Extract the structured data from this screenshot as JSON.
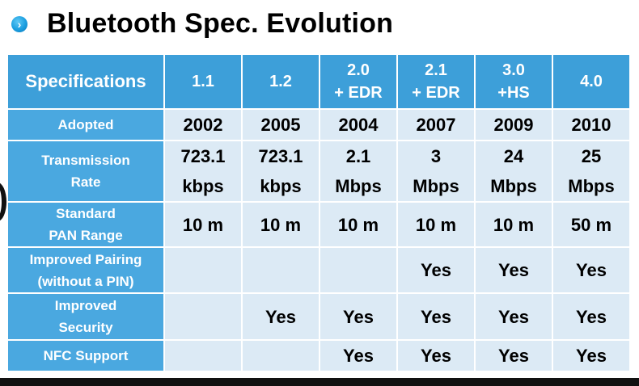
{
  "title": "Bluetooth Spec. Evolution",
  "bullet_icon": "chevron-right-icon",
  "colors": {
    "header_bg": "#3d9fd9",
    "row_label_bg": "#4aa8e0",
    "cell_bg": "#dceaf5",
    "bullet": "#1a9ee0"
  },
  "table": {
    "corner_label": "Specifications",
    "columns": [
      {
        "line1": "1.1",
        "line2": ""
      },
      {
        "line1": "1.2",
        "line2": ""
      },
      {
        "line1": "2.0",
        "line2": "+ EDR"
      },
      {
        "line1": "2.1",
        "line2": "+ EDR"
      },
      {
        "line1": "3.0",
        "line2": "+HS"
      },
      {
        "line1": "4.0",
        "line2": ""
      }
    ],
    "rows": [
      {
        "label1": "Adopted",
        "label2": "",
        "cells": [
          {
            "l1": "2002",
            "l2": ""
          },
          {
            "l1": "2005",
            "l2": ""
          },
          {
            "l1": "2004",
            "l2": ""
          },
          {
            "l1": "2007",
            "l2": ""
          },
          {
            "l1": "2009",
            "l2": ""
          },
          {
            "l1": "2010",
            "l2": ""
          }
        ]
      },
      {
        "label1": "Transmission",
        "label2": "Rate",
        "cells": [
          {
            "l1": "723.1",
            "l2": "kbps"
          },
          {
            "l1": "723.1",
            "l2": "kbps"
          },
          {
            "l1": "2.1",
            "l2": "Mbps"
          },
          {
            "l1": "3",
            "l2": "Mbps"
          },
          {
            "l1": "24",
            "l2": "Mbps"
          },
          {
            "l1": "25",
            "l2": "Mbps"
          }
        ]
      },
      {
        "label1": "Standard",
        "label2": "PAN Range",
        "cells": [
          {
            "l1": "10 m",
            "l2": ""
          },
          {
            "l1": "10 m",
            "l2": ""
          },
          {
            "l1": "10 m",
            "l2": ""
          },
          {
            "l1": "10 m",
            "l2": ""
          },
          {
            "l1": "10 m",
            "l2": ""
          },
          {
            "l1": "50 m",
            "l2": ""
          }
        ]
      },
      {
        "label1": "Improved Pairing",
        "label2": "(without a PIN)",
        "cells": [
          {
            "l1": "",
            "l2": ""
          },
          {
            "l1": "",
            "l2": ""
          },
          {
            "l1": "",
            "l2": ""
          },
          {
            "l1": "Yes",
            "l2": ""
          },
          {
            "l1": "Yes",
            "l2": ""
          },
          {
            "l1": "Yes",
            "l2": ""
          }
        ]
      },
      {
        "label1": "Improved",
        "label2": "Security",
        "cells": [
          {
            "l1": "",
            "l2": ""
          },
          {
            "l1": "Yes",
            "l2": ""
          },
          {
            "l1": "Yes",
            "l2": ""
          },
          {
            "l1": "Yes",
            "l2": ""
          },
          {
            "l1": "Yes",
            "l2": ""
          },
          {
            "l1": "Yes",
            "l2": ""
          }
        ]
      },
      {
        "label1": "NFC Support",
        "label2": "",
        "cells": [
          {
            "l1": "",
            "l2": ""
          },
          {
            "l1": "",
            "l2": ""
          },
          {
            "l1": "Yes",
            "l2": ""
          },
          {
            "l1": "Yes",
            "l2": ""
          },
          {
            "l1": "Yes",
            "l2": ""
          },
          {
            "l1": "Yes",
            "l2": ""
          }
        ]
      }
    ]
  }
}
